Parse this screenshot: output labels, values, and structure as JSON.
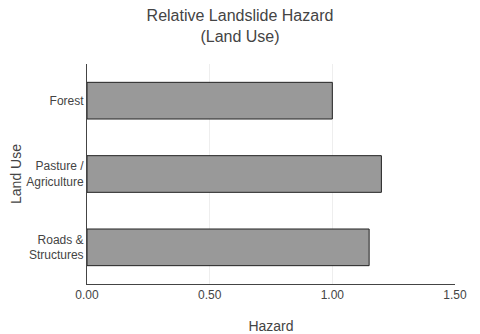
{
  "chart_data": {
    "type": "bar",
    "orientation": "horizontal",
    "title": "Relative Landslide Hazard\n(Land Use)",
    "x_label": "Hazard",
    "y_label": "Land Use",
    "categories": [
      "Roads &\nStructures",
      "Pasture /\nAgriculture",
      "Forest"
    ],
    "values": [
      1.15,
      1.2,
      1.0
    ],
    "color": "#999999",
    "xlim": [
      0.0,
      1.5
    ],
    "xticks": [
      {
        "value": 0.0,
        "label": "0.00"
      },
      {
        "value": 0.5,
        "label": "0.50"
      },
      {
        "value": 1.0,
        "label": "1.00"
      },
      {
        "value": 1.5,
        "label": "1.50"
      }
    ],
    "grid": true
  }
}
